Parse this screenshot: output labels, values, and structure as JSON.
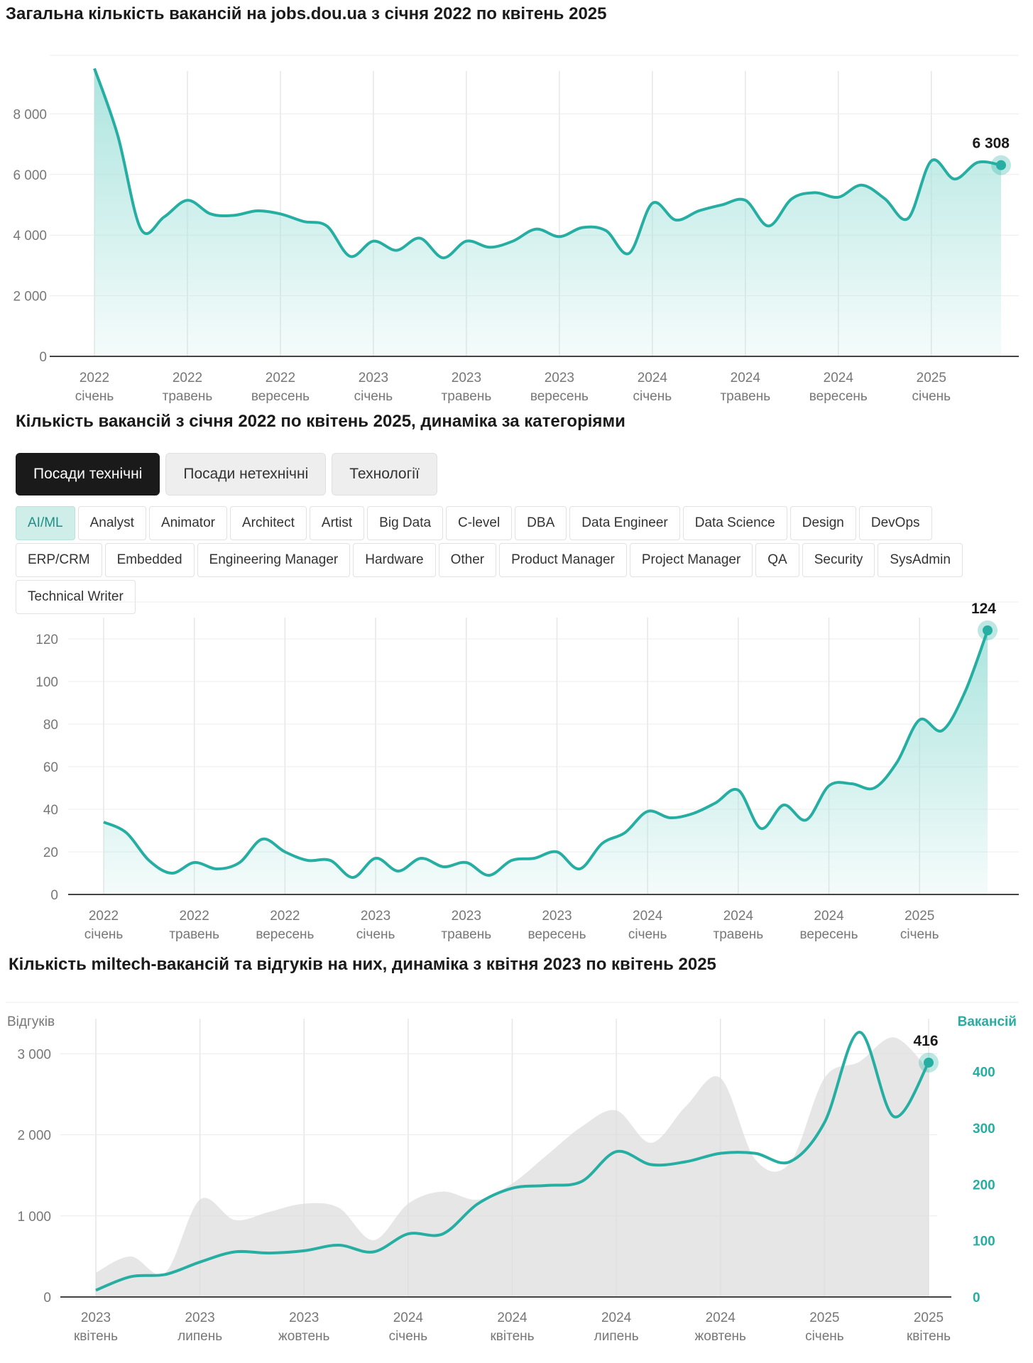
{
  "colors": {
    "accent": "#26aea3",
    "fill_top": "#a8e3dd",
    "grey_area": "#dcdcdc",
    "active_tab": "#1a1a1a"
  },
  "chart1": {
    "title": "Загальна кількість вакансій на jobs.dou.ua з січня 2022 по квітень 2025",
    "callout": "6 308"
  },
  "chart2": {
    "title": "Кількість вакансій з січня 2022 по квітень 2025, динаміка за категоріями",
    "callout": "124",
    "tabs": [
      {
        "label": "Посади технічні",
        "active": true
      },
      {
        "label": "Посади нетехнічні",
        "active": false
      },
      {
        "label": "Технології",
        "active": false
      }
    ],
    "chips": [
      "AI/ML",
      "Analyst",
      "Animator",
      "Architect",
      "Artist",
      "Big Data",
      "C-level",
      "DBA",
      "Data Engineer",
      "Data Science",
      "Design",
      "DevOps",
      "ERP/CRM",
      "Embedded",
      "Engineering Manager",
      "Hardware",
      "Other",
      "Product Manager",
      "Project Manager",
      "QA",
      "Security",
      "SysAdmin",
      "Technical Writer"
    ],
    "active_chip": "AI/ML"
  },
  "chart3": {
    "title": "Кількість miltech-вакансій та відгуків на них, динаміка з квітня 2023 по квітень 2025",
    "callout": "416"
  },
  "chart_data": [
    {
      "type": "area",
      "title": "Загальна кількість вакансій на jobs.dou.ua з січня 2022 по квітень 2025",
      "ylim": [
        0,
        10000
      ],
      "yticks": [
        0,
        2000,
        4000,
        6000,
        8000
      ],
      "ytick_labels": [
        "0",
        "2 000",
        "4 000",
        "6 000",
        "8 000"
      ],
      "xticks": [
        {
          "year": "2022",
          "month": "січень"
        },
        {
          "year": "2022",
          "month": "травень"
        },
        {
          "year": "2022",
          "month": "вересень"
        },
        {
          "year": "2023",
          "month": "січень"
        },
        {
          "year": "2023",
          "month": "травень"
        },
        {
          "year": "2023",
          "month": "вересень"
        },
        {
          "year": "2024",
          "month": "січень"
        },
        {
          "year": "2024",
          "month": "травень"
        },
        {
          "year": "2024",
          "month": "вересень"
        },
        {
          "year": "2025",
          "month": "січень"
        }
      ],
      "values": [
        9500,
        7300,
        4200,
        4600,
        5150,
        4700,
        4650,
        4800,
        4700,
        4450,
        4300,
        3300,
        3800,
        3500,
        3900,
        3250,
        3800,
        3600,
        3800,
        4200,
        3950,
        4250,
        4150,
        3400,
        5050,
        4500,
        4800,
        5000,
        5150,
        4300,
        5200,
        5400,
        5250,
        5650,
        5200,
        4550,
        6450,
        5850,
        6400,
        6308
      ],
      "last_value_label": "6 308",
      "grid": true
    },
    {
      "type": "area",
      "title": "Кількість вакансій з січня 2022 по квітень 2025, динаміка за категоріями",
      "series": [
        {
          "name": "AI/ML"
        }
      ],
      "ylim": [
        0,
        130
      ],
      "yticks": [
        0,
        20,
        40,
        60,
        80,
        100,
        120
      ],
      "xticks": [
        {
          "year": "2022",
          "month": "січень"
        },
        {
          "year": "2022",
          "month": "травень"
        },
        {
          "year": "2022",
          "month": "вересень"
        },
        {
          "year": "2023",
          "month": "січень"
        },
        {
          "year": "2023",
          "month": "травень"
        },
        {
          "year": "2023",
          "month": "вересень"
        },
        {
          "year": "2024",
          "month": "січень"
        },
        {
          "year": "2024",
          "month": "травень"
        },
        {
          "year": "2024",
          "month": "вересень"
        },
        {
          "year": "2025",
          "month": "січень"
        }
      ],
      "values": [
        34,
        29,
        16,
        10,
        15,
        12,
        15,
        26,
        20,
        16,
        16,
        8,
        17,
        11,
        17,
        13,
        15,
        9,
        16,
        17,
        20,
        12,
        24,
        29,
        39,
        36,
        38,
        43,
        49,
        31,
        42,
        35,
        51,
        52,
        50,
        62,
        82,
        77,
        95,
        124
      ],
      "last_value_label": "124",
      "grid": true
    },
    {
      "type": "area",
      "title": "Кількість miltech-вакансій та відгуків на них, динаміка з квітня 2023 по квітень 2025",
      "ylabel": "Відгуків",
      "y2label": "Вакансій",
      "ylim": [
        0,
        3300
      ],
      "y2lim": [
        0,
        475
      ],
      "yticks": [
        0,
        1000,
        2000,
        3000
      ],
      "ytick_labels": [
        "0",
        "1 000",
        "2 000",
        "3 000"
      ],
      "y2ticks": [
        0,
        100,
        200,
        300,
        400
      ],
      "xticks": [
        {
          "year": "2023",
          "month": "квітень"
        },
        {
          "year": "2023",
          "month": "липень"
        },
        {
          "year": "2023",
          "month": "жовтень"
        },
        {
          "year": "2024",
          "month": "січень"
        },
        {
          "year": "2024",
          "month": "квітень"
        },
        {
          "year": "2024",
          "month": "липень"
        },
        {
          "year": "2024",
          "month": "жовтень"
        },
        {
          "year": "2025",
          "month": "січень"
        },
        {
          "year": "2025",
          "month": "квітень"
        }
      ],
      "series": [
        {
          "name": "Відгуків",
          "axis": "left",
          "kind": "area",
          "values": [
            300,
            500,
            300,
            1200,
            950,
            1050,
            1150,
            1100,
            700,
            1150,
            1300,
            1200,
            1400,
            1750,
            2100,
            2300,
            1900,
            2350,
            2700,
            1700,
            1650,
            2700,
            2900,
            3200,
            2800
          ]
        },
        {
          "name": "Вакансій",
          "axis": "right",
          "kind": "line",
          "values": [
            12,
            36,
            40,
            62,
            80,
            78,
            82,
            92,
            80,
            112,
            112,
            165,
            193,
            198,
            205,
            258,
            235,
            240,
            255,
            255,
            240,
            310,
            470,
            320,
            416
          ]
        }
      ],
      "last_value_label": "416",
      "grid": true
    }
  ]
}
